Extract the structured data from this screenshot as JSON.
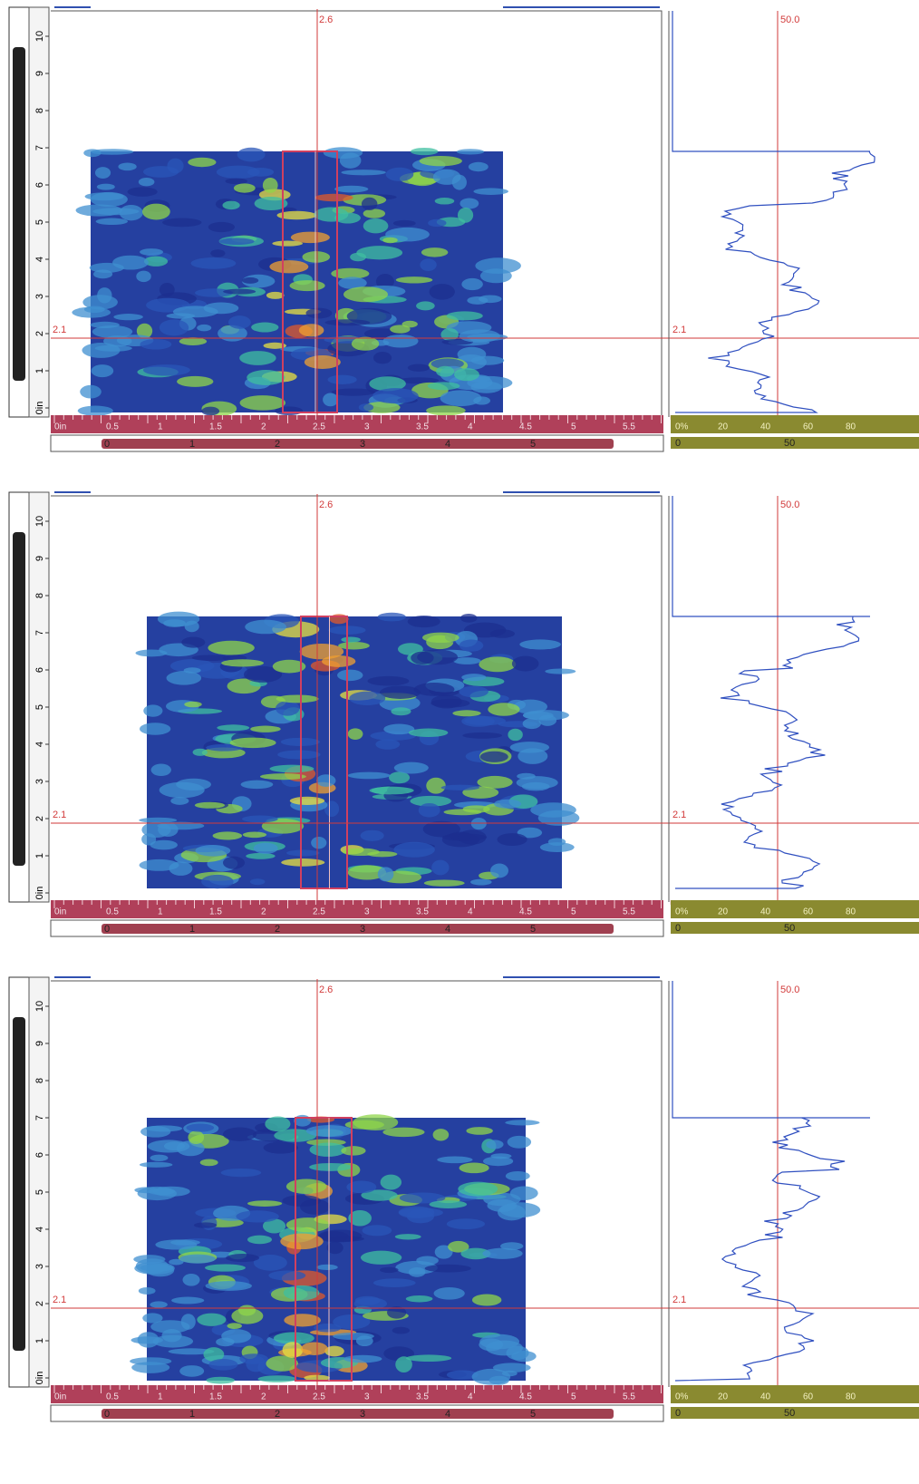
{
  "rulers": {
    "vertical": [
      "0in",
      "1",
      "2",
      "3",
      "4",
      "5",
      "6",
      "7",
      "8",
      "9",
      "10"
    ],
    "horizontal": [
      "0in",
      "0.5",
      "1",
      "1.5",
      "2",
      "2.5",
      "3",
      "3.5",
      "4",
      "4.5",
      "5",
      "5.5"
    ],
    "index": [
      "0",
      "1",
      "2",
      "3",
      "4",
      "5"
    ],
    "amplitude": [
      "0%",
      "20",
      "40",
      "60",
      "80"
    ],
    "amplitude_index": [
      "0",
      "50"
    ]
  },
  "panels": [
    {
      "cursor_x": "2.6",
      "cursor_y": "2.1",
      "cursor_y_profile": "2.1",
      "amplitude_cursor": "50.0"
    },
    {
      "cursor_x": "2.6",
      "cursor_y": "2.1",
      "cursor_y_profile": "2.1",
      "amplitude_cursor": "50.0"
    },
    {
      "cursor_x": "2.6",
      "cursor_y": "2.1",
      "cursor_y_profile": "2.1",
      "amplitude_cursor": "50.0"
    }
  ]
}
